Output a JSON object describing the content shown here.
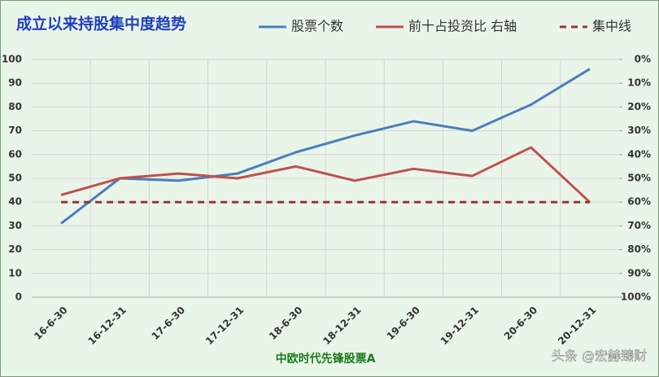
{
  "chart_data": {
    "type": "line",
    "title": "成立以来持股集中度趋势",
    "xlabel": "中欧时代先锋股票A",
    "watermark": "头条 @宏赫臻财",
    "categories": [
      "16-6-30",
      "16-12-31",
      "17-6-30",
      "17-12-31",
      "18-6-30",
      "18-12-31",
      "19-6-30",
      "19-12-31",
      "20-6-30",
      "20-12-31"
    ],
    "series": [
      {
        "name": "股票个数",
        "color": "#4a7ebb",
        "axis": "y",
        "line_style": "solid",
        "values": [
          31,
          50,
          49,
          52,
          61,
          68,
          74,
          70,
          81,
          96
        ]
      },
      {
        "name": "前十占投资比 右轴",
        "color": "#c0504d",
        "axis": "y2",
        "line_style": "solid",
        "values": [
          57,
          50,
          48,
          50,
          45,
          51,
          46,
          49,
          37,
          60
        ]
      },
      {
        "name": "集中线",
        "color": "#943634",
        "axis": "y2",
        "line_style": "dashed",
        "values": [
          60,
          60,
          60,
          60,
          60,
          60,
          60,
          60,
          60,
          60
        ]
      }
    ],
    "ylim": [
      0,
      100
    ],
    "yticks": [
      0,
      10,
      20,
      30,
      40,
      50,
      60,
      70,
      80,
      90,
      100
    ],
    "y2lim": [
      0,
      100
    ],
    "y2_inverted": true,
    "y2ticks": [
      {
        "value": 0,
        "label": "0%"
      },
      {
        "value": 10,
        "label": "10%"
      },
      {
        "value": 20,
        "label": "20%"
      },
      {
        "value": 30,
        "label": "30%"
      },
      {
        "value": 40,
        "label": "40%"
      },
      {
        "value": 50,
        "label": "50%"
      },
      {
        "value": 60,
        "label": "60%"
      },
      {
        "value": 70,
        "label": "70%"
      },
      {
        "value": 80,
        "label": "80%"
      },
      {
        "value": 90,
        "label": "90%"
      },
      {
        "value": 100,
        "label": "100%"
      }
    ],
    "grid": true,
    "legend": "top"
  }
}
